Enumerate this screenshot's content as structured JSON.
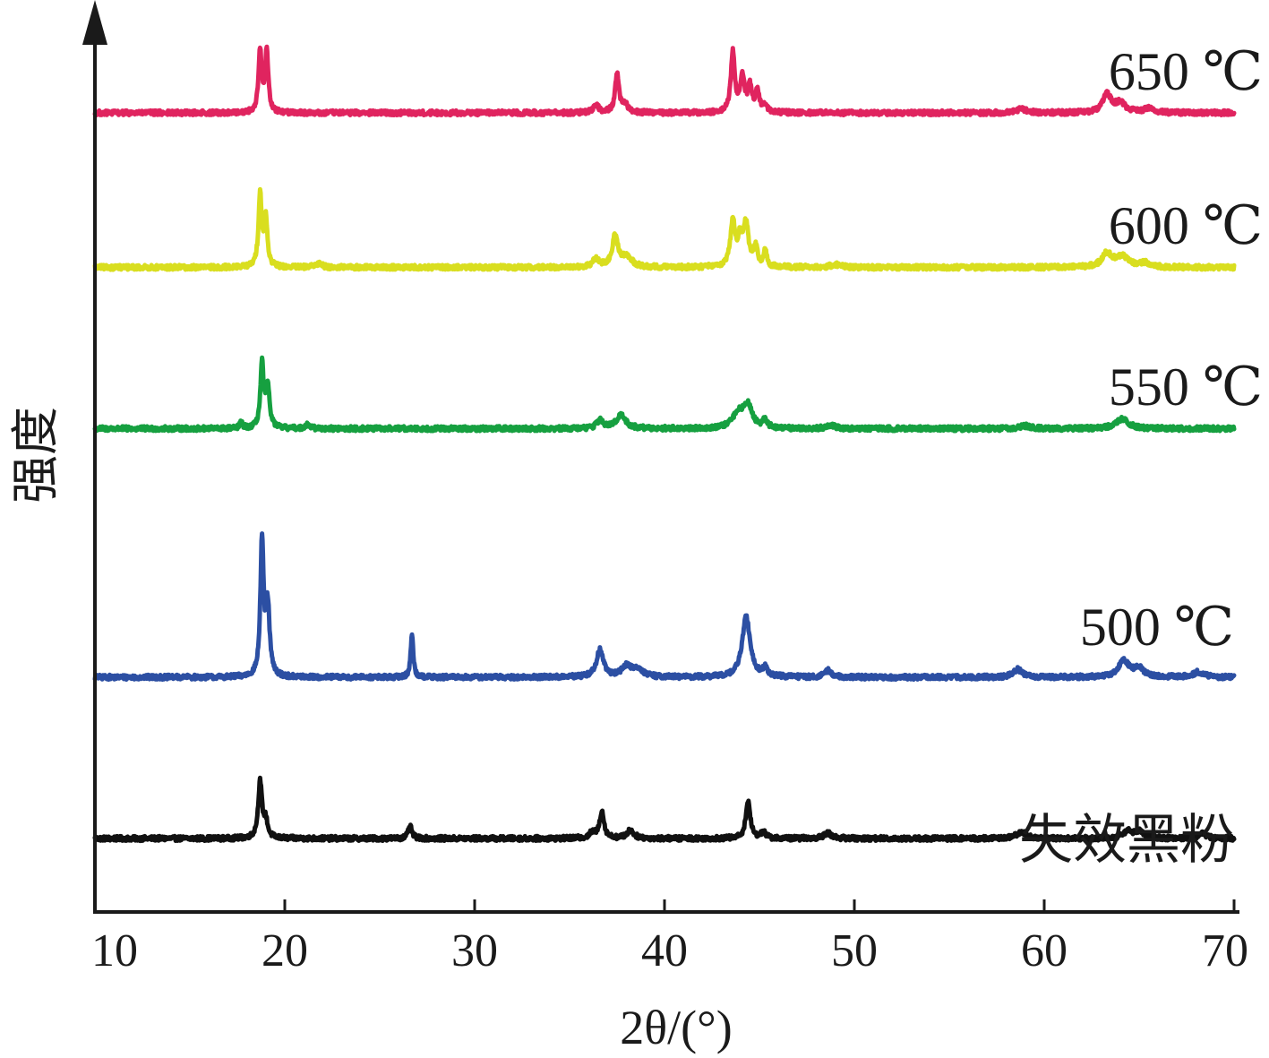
{
  "chart_data": {
    "type": "line",
    "xlabel": "2θ/(°)",
    "ylabel": "强度",
    "xlim": [
      10,
      70
    ],
    "x_ticks": [
      "10",
      "20",
      "30",
      "40",
      "50",
      "60",
      "70"
    ],
    "y_ticks_shown": false,
    "grid": false,
    "legend": "labels placed at right end of each trace",
    "series": [
      {
        "name": "失效黑粉",
        "color": "#111111",
        "baseline": 0.0,
        "peaks": [
          {
            "x": 18.7,
            "h": 0.42,
            "w": 0.12
          },
          {
            "x": 19.0,
            "h": 0.12,
            "w": 0.12
          },
          {
            "x": 26.6,
            "h": 0.09,
            "w": 0.12
          },
          {
            "x": 36.2,
            "h": 0.04,
            "w": 0.2
          },
          {
            "x": 36.7,
            "h": 0.2,
            "w": 0.14
          },
          {
            "x": 38.2,
            "h": 0.06,
            "w": 0.22
          },
          {
            "x": 44.4,
            "h": 0.28,
            "w": 0.14
          },
          {
            "x": 45.2,
            "h": 0.05,
            "w": 0.14
          },
          {
            "x": 48.6,
            "h": 0.04,
            "w": 0.25
          },
          {
            "x": 58.8,
            "h": 0.05,
            "w": 0.3
          },
          {
            "x": 64.4,
            "h": 0.05,
            "w": 0.3
          },
          {
            "x": 65.0,
            "h": 0.05,
            "w": 0.3
          },
          {
            "x": 68.3,
            "h": 0.04,
            "w": 0.25
          }
        ]
      },
      {
        "name": "500 ℃",
        "color": "#2c4fa3",
        "baseline": 1.2,
        "peaks": [
          {
            "x": 18.8,
            "h": 1.0,
            "w": 0.1
          },
          {
            "x": 19.1,
            "h": 0.52,
            "w": 0.12
          },
          {
            "x": 26.7,
            "h": 0.32,
            "w": 0.08
          },
          {
            "x": 36.6,
            "h": 0.2,
            "w": 0.22
          },
          {
            "x": 38.0,
            "h": 0.08,
            "w": 0.3
          },
          {
            "x": 38.6,
            "h": 0.06,
            "w": 0.3
          },
          {
            "x": 44.3,
            "h": 0.45,
            "w": 0.25
          },
          {
            "x": 45.3,
            "h": 0.06,
            "w": 0.14
          },
          {
            "x": 48.6,
            "h": 0.05,
            "w": 0.2
          },
          {
            "x": 58.6,
            "h": 0.06,
            "w": 0.25
          },
          {
            "x": 64.2,
            "h": 0.12,
            "w": 0.35
          },
          {
            "x": 65.0,
            "h": 0.06,
            "w": 0.3
          },
          {
            "x": 68.1,
            "h": 0.04,
            "w": 0.3
          }
        ]
      },
      {
        "name": "550 ℃",
        "color": "#16a040",
        "baseline": 3.05,
        "peaks": [
          {
            "x": 17.7,
            "h": 0.04,
            "w": 0.1
          },
          {
            "x": 18.8,
            "h": 0.47,
            "w": 0.1
          },
          {
            "x": 19.1,
            "h": 0.3,
            "w": 0.12
          },
          {
            "x": 21.2,
            "h": 0.03,
            "w": 0.15
          },
          {
            "x": 36.6,
            "h": 0.06,
            "w": 0.2
          },
          {
            "x": 37.7,
            "h": 0.1,
            "w": 0.3
          },
          {
            "x": 43.9,
            "h": 0.12,
            "w": 0.35
          },
          {
            "x": 44.4,
            "h": 0.16,
            "w": 0.25
          },
          {
            "x": 45.3,
            "h": 0.06,
            "w": 0.14
          },
          {
            "x": 48.8,
            "h": 0.02,
            "w": 0.3
          },
          {
            "x": 59.0,
            "h": 0.02,
            "w": 0.3
          },
          {
            "x": 64.1,
            "h": 0.07,
            "w": 0.4
          }
        ]
      },
      {
        "name": "600 ℃",
        "color": "#d9de1f",
        "baseline": 4.25,
        "peaks": [
          {
            "x": 18.7,
            "h": 0.54,
            "w": 0.1
          },
          {
            "x": 19.0,
            "h": 0.36,
            "w": 0.1
          },
          {
            "x": 21.8,
            "h": 0.03,
            "w": 0.2
          },
          {
            "x": 36.4,
            "h": 0.06,
            "w": 0.2
          },
          {
            "x": 37.4,
            "h": 0.23,
            "w": 0.18
          },
          {
            "x": 38.0,
            "h": 0.08,
            "w": 0.3
          },
          {
            "x": 43.6,
            "h": 0.33,
            "w": 0.15
          },
          {
            "x": 44.0,
            "h": 0.2,
            "w": 0.15
          },
          {
            "x": 44.3,
            "h": 0.3,
            "w": 0.15
          },
          {
            "x": 44.8,
            "h": 0.14,
            "w": 0.12
          },
          {
            "x": 45.3,
            "h": 0.12,
            "w": 0.1
          },
          {
            "x": 49.0,
            "h": 0.02,
            "w": 0.3
          },
          {
            "x": 63.3,
            "h": 0.1,
            "w": 0.3
          },
          {
            "x": 64.1,
            "h": 0.08,
            "w": 0.4
          },
          {
            "x": 65.3,
            "h": 0.03,
            "w": 0.3
          }
        ]
      },
      {
        "name": "650 ℃",
        "color": "#e0245f",
        "baseline": 5.4,
        "peaks": [
          {
            "x": 18.7,
            "h": 0.45,
            "w": 0.1
          },
          {
            "x": 19.05,
            "h": 0.45,
            "w": 0.1
          },
          {
            "x": 36.4,
            "h": 0.05,
            "w": 0.2
          },
          {
            "x": 37.5,
            "h": 0.28,
            "w": 0.12
          },
          {
            "x": 37.9,
            "h": 0.06,
            "w": 0.2
          },
          {
            "x": 43.6,
            "h": 0.45,
            "w": 0.12
          },
          {
            "x": 44.1,
            "h": 0.26,
            "w": 0.14
          },
          {
            "x": 44.5,
            "h": 0.18,
            "w": 0.12
          },
          {
            "x": 44.9,
            "h": 0.16,
            "w": 0.12
          },
          {
            "x": 45.3,
            "h": 0.05,
            "w": 0.12
          },
          {
            "x": 58.8,
            "h": 0.03,
            "w": 0.3
          },
          {
            "x": 63.3,
            "h": 0.14,
            "w": 0.25
          },
          {
            "x": 64.0,
            "h": 0.07,
            "w": 0.35
          },
          {
            "x": 65.5,
            "h": 0.03,
            "w": 0.3
          }
        ]
      }
    ]
  }
}
